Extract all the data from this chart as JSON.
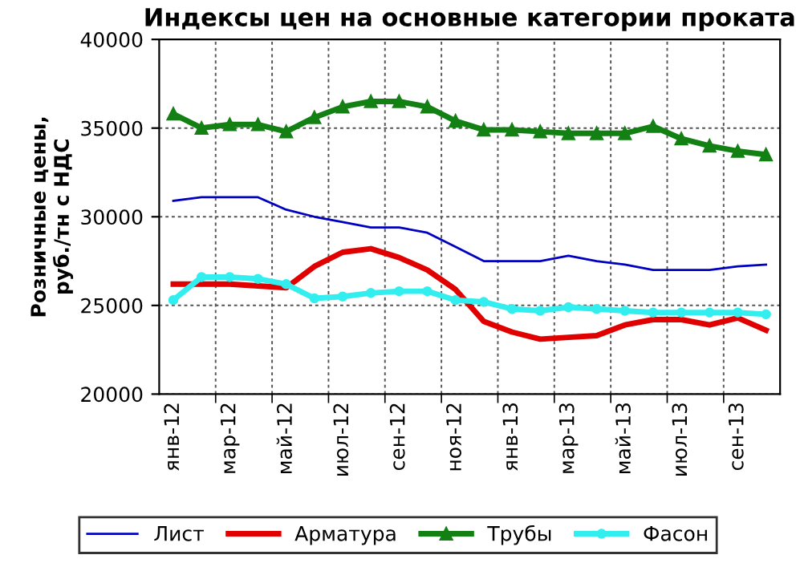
{
  "chart_data": {
    "type": "line",
    "title": "Индексы цен на основные категории проката",
    "ylabel": "Розничные цены,\nруб./тн с НДС",
    "categories": [
      "янв-12",
      null,
      "мар-12",
      null,
      "май-12",
      null,
      "июл-12",
      null,
      "сен-12",
      null,
      "ноя-12",
      null,
      "янв-13",
      null,
      "мар-13",
      null,
      "май-13",
      null,
      "июл-13",
      null,
      "сен-13",
      null
    ],
    "series": [
      {
        "name": "Лист",
        "color": "#0000c0",
        "marker": "none",
        "values": [
          30900,
          31100,
          31100,
          31100,
          30400,
          30000,
          29700,
          29400,
          29400,
          29100,
          28300,
          27500,
          27500,
          27500,
          27800,
          27500,
          27300,
          27000,
          27000,
          27000,
          27200,
          27300
        ]
      },
      {
        "name": "Арматура",
        "color": "#e00000",
        "marker": "none",
        "values": [
          26200,
          26200,
          26200,
          26100,
          26000,
          27200,
          28000,
          28200,
          27700,
          27000,
          25900,
          24100,
          23500,
          23100,
          23200,
          23300,
          23900,
          24200,
          24200,
          23900,
          24300,
          23600
        ]
      },
      {
        "name": "Трубы",
        "color": "#138013",
        "marker": "triangle",
        "values": [
          35800,
          35000,
          35200,
          35200,
          34800,
          35600,
          36200,
          36500,
          36500,
          36200,
          35400,
          34900,
          34900,
          34800,
          34700,
          34700,
          34700,
          35100,
          34400,
          34000,
          33700,
          33500
        ]
      },
      {
        "name": "Фасон",
        "color": "#33eeee",
        "marker": "circle",
        "values": [
          25300,
          26600,
          26600,
          26500,
          26200,
          25400,
          25500,
          25700,
          25800,
          25800,
          25300,
          25200,
          24800,
          24700,
          24900,
          24800,
          24700,
          24600,
          24600,
          24600,
          24600,
          24500
        ]
      }
    ],
    "ylim": [
      20000,
      40000
    ],
    "yticks": [
      20000,
      25000,
      30000,
      35000,
      40000
    ],
    "grid": true,
    "legend": "bottom",
    "line_style": "solid"
  }
}
